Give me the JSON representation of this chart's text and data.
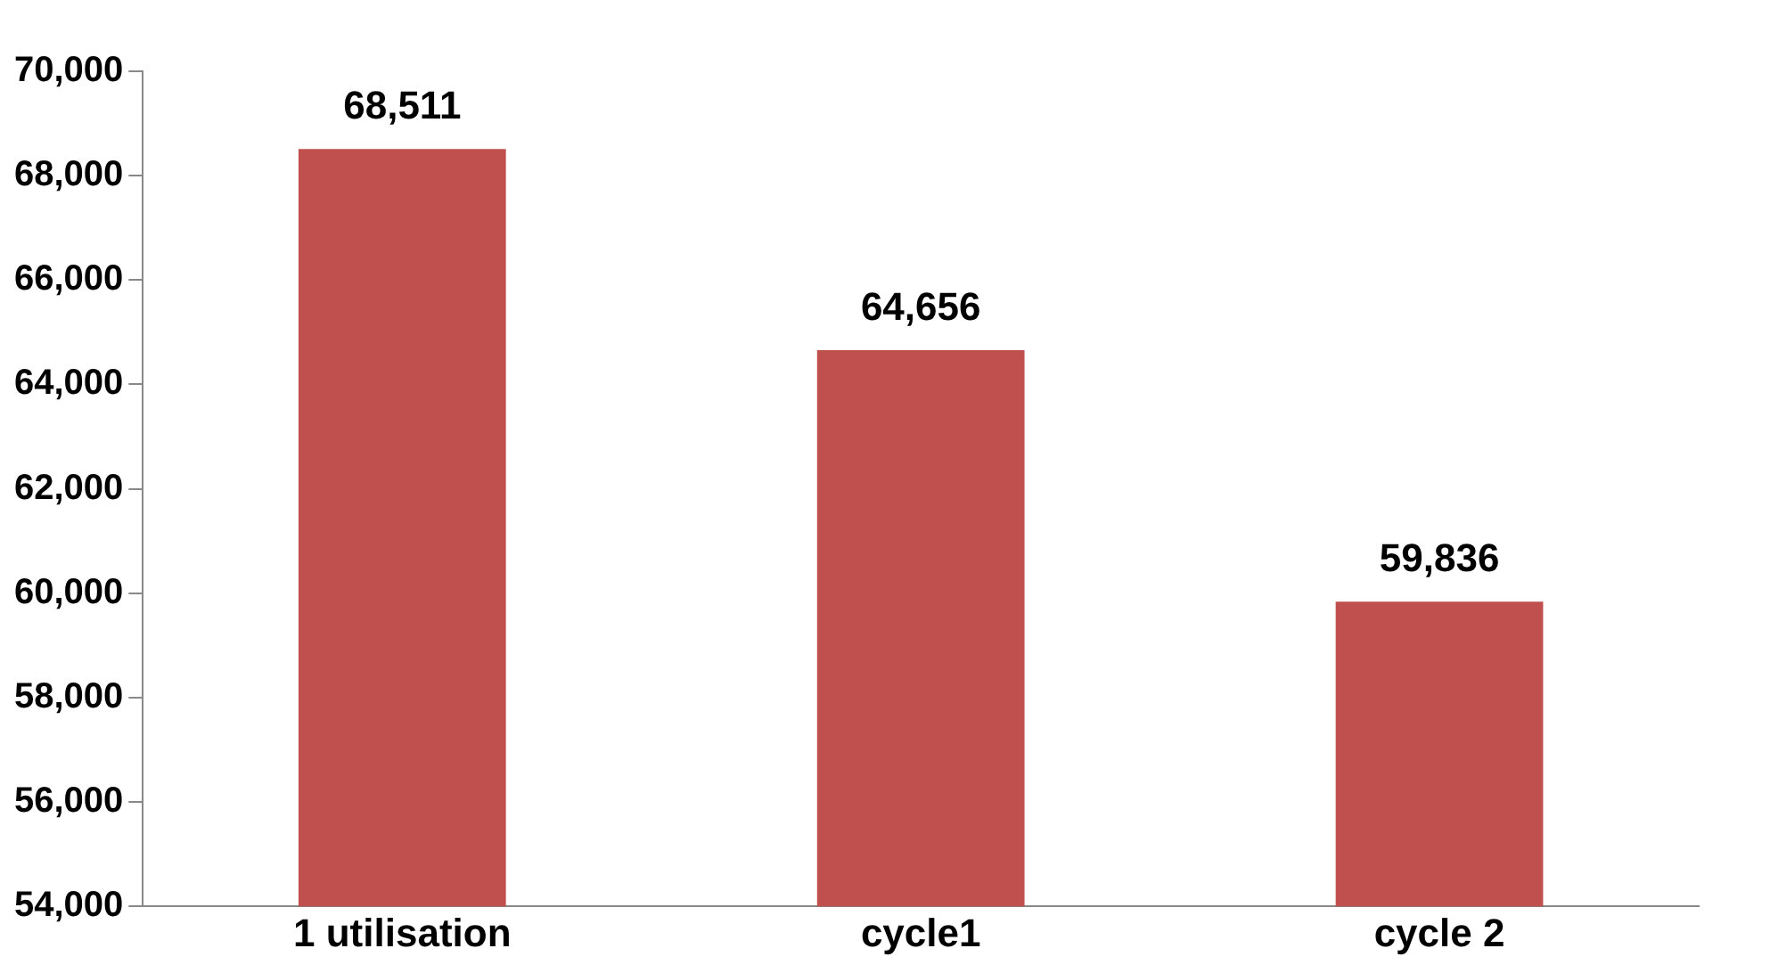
{
  "chart_data": {
    "type": "bar",
    "categories": [
      "1 utilisation",
      "cycle1",
      "cycle 2"
    ],
    "values": [
      68511,
      64656,
      59836
    ],
    "value_labels": [
      "68,511",
      "64,656",
      "59,836"
    ],
    "color": "#c0504d",
    "ylim": [
      54000,
      70000
    ],
    "yticks": [
      {
        "value": 54000,
        "label": "54,000"
      },
      {
        "value": 56000,
        "label": "56,000"
      },
      {
        "value": 58000,
        "label": "58,000"
      },
      {
        "value": 60000,
        "label": "60,000"
      },
      {
        "value": 62000,
        "label": "62,000"
      },
      {
        "value": 64000,
        "label": "64,000"
      },
      {
        "value": 66000,
        "label": "66,000"
      },
      {
        "value": 68000,
        "label": "68,000"
      },
      {
        "value": 70000,
        "label": "70,000"
      }
    ],
    "grid": false,
    "legend": false
  }
}
